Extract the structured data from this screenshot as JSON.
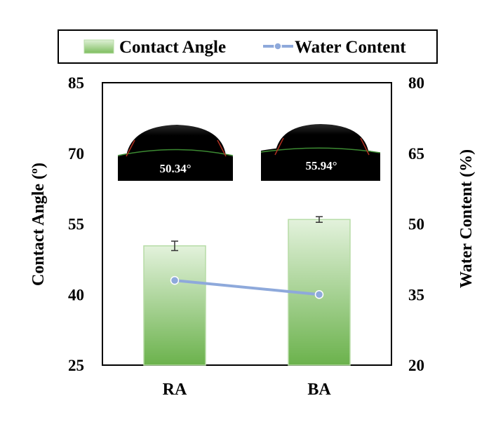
{
  "chart_data": {
    "type": "bar",
    "categories": [
      "RA",
      "BA"
    ],
    "series": [
      {
        "name": "Contact Angle",
        "type": "bar",
        "axis": "left",
        "values": [
          50.34,
          55.94
        ],
        "errors": [
          1.0,
          0.6
        ]
      },
      {
        "name": "Water Content",
        "type": "line",
        "axis": "right",
        "values": [
          38.0,
          35.0
        ]
      }
    ],
    "ylabel": "Contact  Angle (º)",
    "y2label": "Water Content  (%)",
    "ylim": [
      25,
      85
    ],
    "y2lim": [
      20,
      80
    ],
    "yticks": [
      "85",
      "70",
      "55",
      "40",
      "25"
    ],
    "y2ticks": [
      "80",
      "65",
      "50",
      "35",
      "20"
    ],
    "legend_position": "top",
    "annotations": [
      "50.34°",
      "55.94°"
    ],
    "colors": {
      "bar_top": "#e3f2dc",
      "bar_bottom": "#6bb24c",
      "bar_stroke": "#b7dca6",
      "line": "#8ea9db",
      "marker_fill": "#8ea9db",
      "marker_stroke": "#ffffff"
    }
  }
}
